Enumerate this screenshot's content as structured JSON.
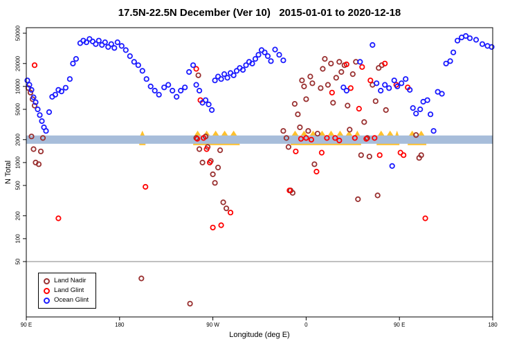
{
  "title": "17.5N-22.5N December (Ver 10)   2015-01-01 to 2020-12-18",
  "axes": {
    "x_label": "Longitude (deg E)",
    "y_label": "N Total",
    "x_domain": [
      90,
      540
    ],
    "x_ticks": [
      {
        "lon": 90,
        "label": "90 E"
      },
      {
        "lon": 180,
        "label": "180"
      },
      {
        "lon": 270,
        "label": "90 W"
      },
      {
        "lon": 360,
        "label": "0"
      },
      {
        "lon": 450,
        "label": "90 E"
      },
      {
        "lon": 540,
        "label": "180"
      }
    ],
    "y_scale": "log10",
    "y_ticks": [
      50,
      100,
      200,
      500,
      1000,
      2000,
      5000,
      10000,
      20000,
      50000
    ]
  },
  "legend": {
    "items": [
      {
        "label": "Land Nadir",
        "color": "#993030"
      },
      {
        "label": "Land Glint",
        "color": "#FF0000"
      },
      {
        "label": "Ocean Glint",
        "color": "#1A1AFF"
      }
    ]
  },
  "bands": {
    "highlight_value": 2000,
    "ocean_band_color": "#A7BDDA",
    "land_band_color": "#FFC12B",
    "land_band_segments_lon": [
      [
        199,
        205
      ],
      [
        251,
        296
      ],
      [
        345,
        413
      ],
      [
        428,
        450
      ],
      [
        458,
        476
      ]
    ]
  },
  "reference_line": {
    "value": 50,
    "color": "#808080"
  },
  "chart_data": {
    "type": "scatter",
    "title": "17.5N-22.5N December (Ver 10)   2015-01-01 to 2020-12-18",
    "xlabel": "Longitude (deg E)",
    "ylabel": "N Total",
    "x_domain": [
      90,
      540
    ],
    "ylim": [
      10,
      59000
    ],
    "series": [
      {
        "name": "Land Nadir",
        "color": "#993030",
        "points": [
          [
            92,
            9500
          ],
          [
            94,
            8300
          ],
          [
            96,
            6800
          ],
          [
            98,
            5600
          ],
          [
            95,
            2200
          ],
          [
            97,
            1500
          ],
          [
            99,
            1000
          ],
          [
            102,
            950
          ],
          [
            104,
            1400
          ],
          [
            106,
            2100
          ],
          [
            201,
            30
          ],
          [
            248,
            14
          ],
          [
            254,
            2100
          ],
          [
            256,
            14000
          ],
          [
            257,
            1500
          ],
          [
            260,
            1000
          ],
          [
            263,
            2200
          ],
          [
            265,
            1600
          ],
          [
            268,
            1050
          ],
          [
            270,
            700
          ],
          [
            272,
            540
          ],
          [
            275,
            860
          ],
          [
            277,
            1450
          ],
          [
            280,
            300
          ],
          [
            283,
            250
          ],
          [
            338,
            2600
          ],
          [
            341,
            2100
          ],
          [
            343,
            1600
          ],
          [
            345,
            430
          ],
          [
            347,
            400
          ],
          [
            349,
            5900
          ],
          [
            352,
            4300
          ],
          [
            354,
            2900
          ],
          [
            356,
            12000
          ],
          [
            358,
            10000
          ],
          [
            360,
            6800
          ],
          [
            362,
            2600
          ],
          [
            364,
            13500
          ],
          [
            366,
            11000
          ],
          [
            368,
            950
          ],
          [
            371,
            2400
          ],
          [
            374,
            9500
          ],
          [
            376,
            17000
          ],
          [
            378,
            23000
          ],
          [
            381,
            10500
          ],
          [
            384,
            20000
          ],
          [
            386,
            6100
          ],
          [
            389,
            13000
          ],
          [
            392,
            21000
          ],
          [
            394,
            15500
          ],
          [
            397,
            19000
          ],
          [
            400,
            5600
          ],
          [
            402,
            2700
          ],
          [
            405,
            14500
          ],
          [
            408,
            21000
          ],
          [
            410,
            330
          ],
          [
            413,
            1250
          ],
          [
            416,
            3400
          ],
          [
            419,
            2100
          ],
          [
            421,
            1200
          ],
          [
            424,
            10500
          ],
          [
            427,
            6400
          ],
          [
            429,
            370
          ],
          [
            430,
            17500
          ],
          [
            433,
            19000
          ],
          [
            437,
            4900
          ],
          [
            466,
            2300
          ],
          [
            469,
            1150
          ],
          [
            471,
            1250
          ]
        ]
      },
      {
        "name": "Land Glint",
        "color": "#FF0000",
        "points": [
          [
            98,
            19000
          ],
          [
            121,
            185
          ],
          [
            205,
            480
          ],
          [
            254,
            17000
          ],
          [
            258,
            6600
          ],
          [
            255,
            2050
          ],
          [
            261,
            2100
          ],
          [
            264,
            1500
          ],
          [
            267,
            1000
          ],
          [
            270,
            140
          ],
          [
            278,
            150
          ],
          [
            287,
            220
          ],
          [
            344,
            430
          ],
          [
            350,
            1400
          ],
          [
            355,
            2050
          ],
          [
            360,
            2100
          ],
          [
            365,
            2000
          ],
          [
            370,
            760
          ],
          [
            375,
            1350
          ],
          [
            380,
            2100
          ],
          [
            385,
            8300
          ],
          [
            388,
            2100
          ],
          [
            392,
            1950
          ],
          [
            399,
            19500
          ],
          [
            403,
            9500
          ],
          [
            407,
            2100
          ],
          [
            411,
            5100
          ],
          [
            414,
            18000
          ],
          [
            418,
            2050
          ],
          [
            422,
            12000
          ],
          [
            426,
            2100
          ],
          [
            431,
            1250
          ],
          [
            436,
            20000
          ],
          [
            447,
            10500
          ],
          [
            451,
            1350
          ],
          [
            454,
            1250
          ],
          [
            458,
            9700
          ],
          [
            475,
            185
          ]
        ]
      },
      {
        "name": "Ocean Glint",
        "color": "#1A1AFF",
        "points": [
          [
            91,
            12000
          ],
          [
            93,
            10500
          ],
          [
            95,
            9000
          ],
          [
            97,
            7200
          ],
          [
            99,
            6200
          ],
          [
            101,
            5000
          ],
          [
            103,
            4200
          ],
          [
            105,
            3500
          ],
          [
            107,
            2900
          ],
          [
            109,
            2600
          ],
          [
            112,
            4600
          ],
          [
            115,
            7300
          ],
          [
            118,
            7800
          ],
          [
            121,
            9000
          ],
          [
            124,
            8600
          ],
          [
            128,
            9600
          ],
          [
            132,
            12500
          ],
          [
            135,
            20000
          ],
          [
            138,
            23000
          ],
          [
            142,
            37000
          ],
          [
            145,
            40000
          ],
          [
            148,
            38000
          ],
          [
            151,
            42000
          ],
          [
            154,
            39000
          ],
          [
            157,
            36000
          ],
          [
            160,
            40000
          ],
          [
            163,
            35000
          ],
          [
            166,
            38000
          ],
          [
            169,
            33000
          ],
          [
            172,
            36000
          ],
          [
            175,
            32000
          ],
          [
            178,
            38000
          ],
          [
            182,
            34000
          ],
          [
            186,
            30000
          ],
          [
            190,
            25000
          ],
          [
            194,
            21000
          ],
          [
            198,
            19000
          ],
          [
            202,
            16000
          ],
          [
            206,
            12500
          ],
          [
            210,
            10000
          ],
          [
            214,
            8800
          ],
          [
            218,
            7800
          ],
          [
            223,
            9700
          ],
          [
            227,
            10500
          ],
          [
            231,
            8800
          ],
          [
            235,
            7300
          ],
          [
            239,
            8800
          ],
          [
            243,
            9700
          ],
          [
            247,
            15500
          ],
          [
            251,
            19000
          ],
          [
            254,
            10500
          ],
          [
            257,
            8800
          ],
          [
            260,
            6100
          ],
          [
            263,
            6600
          ],
          [
            266,
            5800
          ],
          [
            269,
            4900
          ],
          [
            272,
            12000
          ],
          [
            275,
            13500
          ],
          [
            278,
            12500
          ],
          [
            281,
            14500
          ],
          [
            284,
            13000
          ],
          [
            287,
            15000
          ],
          [
            290,
            14000
          ],
          [
            293,
            16000
          ],
          [
            296,
            17500
          ],
          [
            299,
            16500
          ],
          [
            302,
            19000
          ],
          [
            305,
            21000
          ],
          [
            308,
            20000
          ],
          [
            311,
            23000
          ],
          [
            314,
            26000
          ],
          [
            317,
            30000
          ],
          [
            320,
            28000
          ],
          [
            323,
            25000
          ],
          [
            326,
            21500
          ],
          [
            330,
            30500
          ],
          [
            334,
            26000
          ],
          [
            338,
            22000
          ],
          [
            396,
            9700
          ],
          [
            399,
            8800
          ],
          [
            412,
            21000
          ],
          [
            424,
            35000
          ],
          [
            428,
            11000
          ],
          [
            432,
            8800
          ],
          [
            436,
            10500
          ],
          [
            440,
            9500
          ],
          [
            443,
            900
          ],
          [
            445,
            12000
          ],
          [
            448,
            10000
          ],
          [
            452,
            11000
          ],
          [
            456,
            12500
          ],
          [
            460,
            9000
          ],
          [
            463,
            5200
          ],
          [
            466,
            4400
          ],
          [
            470,
            5000
          ],
          [
            473,
            6300
          ],
          [
            477,
            6600
          ],
          [
            480,
            4300
          ],
          [
            483,
            2600
          ],
          [
            487,
            8500
          ],
          [
            491,
            8000
          ],
          [
            495,
            20000
          ],
          [
            499,
            21500
          ],
          [
            502,
            28000
          ],
          [
            506,
            40000
          ],
          [
            510,
            44000
          ],
          [
            514,
            46000
          ],
          [
            518,
            43000
          ],
          [
            524,
            41000
          ],
          [
            530,
            36000
          ],
          [
            535,
            34000
          ],
          [
            539,
            33000
          ]
        ]
      }
    ]
  }
}
